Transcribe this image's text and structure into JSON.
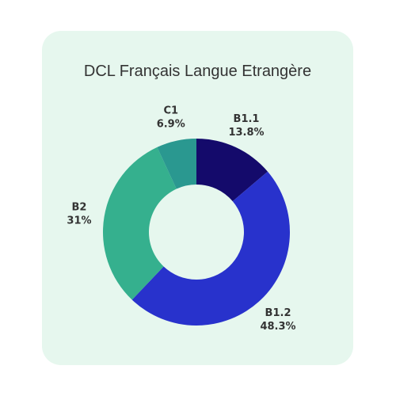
{
  "chart_data": {
    "type": "pie",
    "title": "DCL Français Langue Etrangère",
    "donut": true,
    "slices": [
      {
        "label": "B1.1",
        "value": 13.8,
        "display": "13.8%",
        "color": "#140a6b"
      },
      {
        "label": "B1.2",
        "value": 48.3,
        "display": "48.3%",
        "color": "#2832cc"
      },
      {
        "label": "B2",
        "value": 31,
        "display": "31%",
        "color": "#35b08e"
      },
      {
        "label": "C1",
        "value": 6.9,
        "display": "6.9%",
        "color": "#2a9890"
      }
    ],
    "background_color": "#e6f7ee"
  }
}
